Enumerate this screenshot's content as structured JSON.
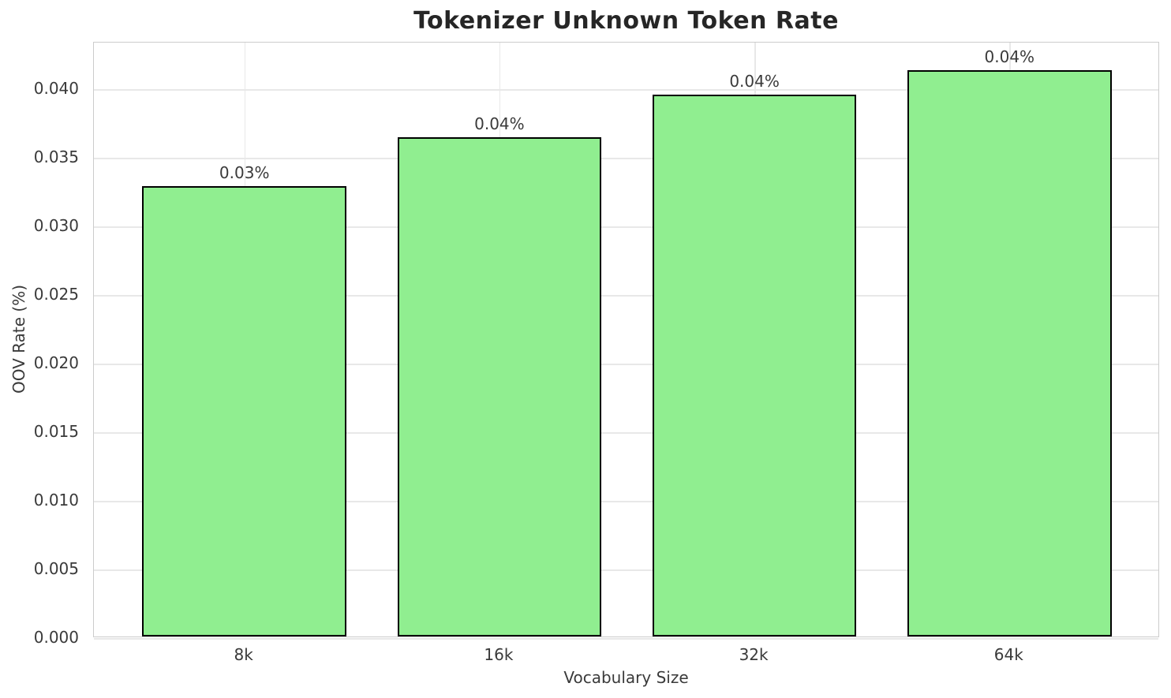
{
  "chart_data": {
    "type": "bar",
    "title": "Tokenizer Unknown Token Rate",
    "xlabel": "Vocabulary Size",
    "ylabel": "OOV Rate (%)",
    "categories": [
      "8k",
      "16k",
      "32k",
      "64k"
    ],
    "values": [
      0.0328,
      0.0364,
      0.0395,
      0.0413
    ],
    "bar_labels": [
      "0.03%",
      "0.04%",
      "0.04%",
      "0.04%"
    ],
    "yticks": [
      0.0,
      0.005,
      0.01,
      0.015,
      0.02,
      0.025,
      0.03,
      0.035,
      0.04
    ],
    "ytick_labels": [
      "0.000",
      "0.005",
      "0.010",
      "0.015",
      "0.020",
      "0.025",
      "0.030",
      "0.035",
      "0.040"
    ],
    "ylim": [
      0,
      0.0434
    ],
    "grid": true,
    "legend_position": "none",
    "colors": {
      "bar_fill": "#90EE90",
      "bar_edge": "#000000",
      "grid": "#e8e8e8",
      "spine": "#cccccc",
      "title": "#262626",
      "tick_labels": "#3a3a3a"
    }
  }
}
